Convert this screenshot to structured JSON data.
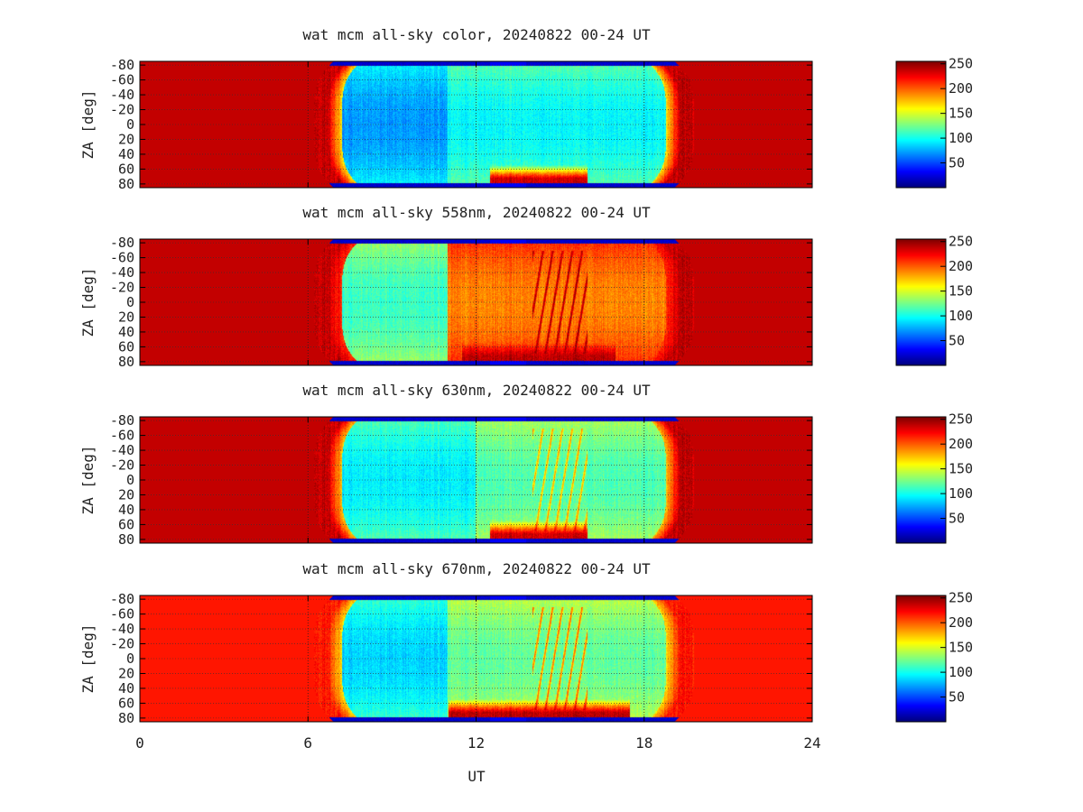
{
  "chart_data": [
    {
      "type": "heatmap",
      "title": "wat mcm all-sky color, 20240822 00-24 UT",
      "ylabel": "ZA [deg]",
      "y_ticks": [
        "-80",
        "-60",
        "-40",
        "-20",
        "0",
        "20",
        "40",
        "60",
        "80"
      ],
      "xlim": [
        0,
        24
      ],
      "ylim": [
        -85,
        85
      ],
      "colorbar": {
        "ticks": [
          "50",
          "100",
          "150",
          "200",
          "250"
        ],
        "range": [
          0,
          255
        ]
      },
      "grid": true,
      "profile": {
        "base": 70,
        "mid": 95,
        "dark_until": 11,
        "red_low_from": 12.5,
        "red_low_to": 16,
        "streak": 0,
        "low_red": 235,
        "saturated": 238,
        "edge": 20
      }
    },
    {
      "type": "heatmap",
      "title": "wat mcm all-sky 558nm, 20240822 00-24 UT",
      "ylabel": "ZA [deg]",
      "y_ticks": [
        "-80",
        "-60",
        "-40",
        "-20",
        "0",
        "20",
        "40",
        "60",
        "80"
      ],
      "xlim": [
        0,
        24
      ],
      "ylim": [
        -85,
        85
      ],
      "colorbar": {
        "ticks": [
          "50",
          "100",
          "150",
          "200",
          "250"
        ],
        "range": [
          0,
          255
        ]
      },
      "grid": true,
      "profile": {
        "base": 110,
        "mid": 190,
        "dark_until": 11,
        "red_low_from": 11.5,
        "red_low_to": 17,
        "streak": 1,
        "low_red": 240,
        "saturated": 238,
        "edge": 20
      }
    },
    {
      "type": "heatmap",
      "title": "wat mcm all-sky 630nm, 20240822 00-24 UT",
      "ylabel": "ZA [deg]",
      "y_ticks": [
        "-80",
        "-60",
        "-40",
        "-20",
        "0",
        "20",
        "40",
        "60",
        "80"
      ],
      "xlim": [
        0,
        24
      ],
      "ylim": [
        -85,
        85
      ],
      "colorbar": {
        "ticks": [
          "50",
          "100",
          "150",
          "200",
          "250"
        ],
        "range": [
          0,
          255
        ]
      },
      "grid": true,
      "profile": {
        "base": 92,
        "mid": 115,
        "dark_until": 12,
        "red_low_from": 12.5,
        "red_low_to": 16,
        "streak": 0.5,
        "low_red": 235,
        "saturated": 238,
        "edge": 20
      }
    },
    {
      "type": "heatmap",
      "title": "wat mcm all-sky 670nm, 20240822 00-24 UT",
      "ylabel": "ZA [deg]",
      "y_ticks": [
        "-80",
        "-60",
        "-40",
        "-20",
        "0",
        "20",
        "40",
        "60",
        "80"
      ],
      "xlim": [
        0,
        24
      ],
      "ylim": [
        -85,
        85
      ],
      "colorbar": {
        "ticks": [
          "50",
          "100",
          "150",
          "200",
          "250"
        ],
        "range": [
          0,
          255
        ]
      },
      "grid": true,
      "profile": {
        "base": 85,
        "mid": 120,
        "dark_until": 11,
        "red_low_from": 11,
        "red_low_to": 17.5,
        "streak": 0.6,
        "low_red": 240,
        "saturated": 218,
        "edge": 20
      }
    }
  ],
  "x_axis": {
    "label": "UT",
    "ticks": [
      "0",
      "6",
      "12",
      "18",
      "24"
    ]
  }
}
